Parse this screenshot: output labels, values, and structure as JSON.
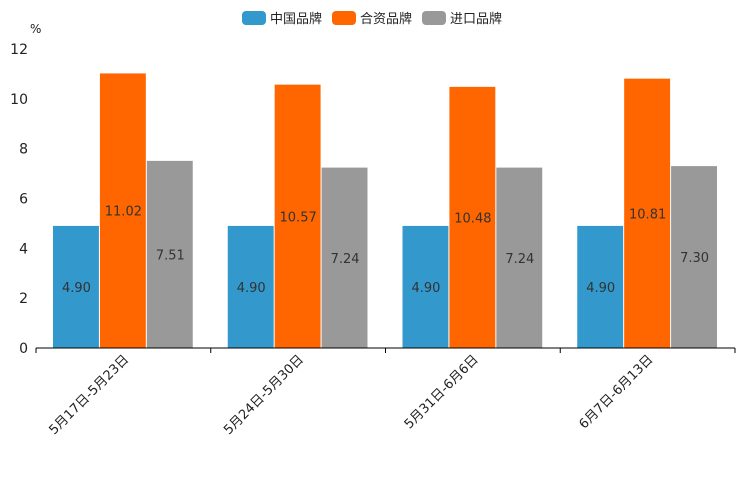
{
  "chart_data": {
    "type": "bar",
    "title": "",
    "ylabel": "%",
    "xlabel": "",
    "ylim": [
      0,
      12
    ],
    "yticks": [
      0,
      2,
      4,
      6,
      8,
      10,
      12
    ],
    "legend_position": "top-center",
    "categories": [
      "5月17日-5月23日",
      "5月24日-5月30日",
      "5月31日-6月6日",
      "6月7日-6月13日"
    ],
    "series": [
      {
        "name": "中国品牌",
        "color": "#3398cc",
        "values": [
          4.9,
          4.9,
          4.9,
          4.9
        ],
        "labels": [
          "4.90",
          "4.90",
          "4.90",
          "4.90"
        ]
      },
      {
        "name": "合资品牌",
        "color": "#ff6600",
        "values": [
          11.02,
          10.57,
          10.48,
          10.81
        ],
        "labels": [
          "11.02",
          "10.57",
          "10.48",
          "10.81"
        ]
      },
      {
        "name": "进口品牌",
        "color": "#999999",
        "values": [
          7.51,
          7.24,
          7.24,
          7.3
        ],
        "labels": [
          "7.51",
          "7.24",
          "7.24",
          "7.30"
        ]
      }
    ]
  }
}
